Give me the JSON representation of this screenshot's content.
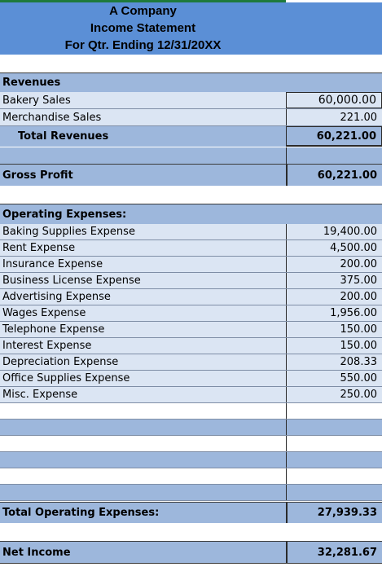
{
  "header": {
    "company": "A Company",
    "statement": "Income Statement",
    "period": "For Qtr. Ending 12/31/20XX"
  },
  "revenues": {
    "heading": "Revenues",
    "items": [
      {
        "label": "Bakery Sales",
        "value": "60,000.00"
      },
      {
        "label": "Merchandise Sales",
        "value": "221.00"
      }
    ],
    "total_label": "Total Revenues",
    "total_value": "60,221.00"
  },
  "gross_profit": {
    "label": "Gross Profit",
    "value": "60,221.00"
  },
  "operating_expenses": {
    "heading": "Operating Expenses:",
    "items": [
      {
        "label": "Baking Supplies Expense",
        "value": "19,400.00"
      },
      {
        "label": "Rent Expense",
        "value": "4,500.00"
      },
      {
        "label": "Insurance Expense",
        "value": "200.00"
      },
      {
        "label": "Business License Expense",
        "value": "375.00"
      },
      {
        "label": "Advertising Expense",
        "value": "200.00"
      },
      {
        "label": "Wages Expense",
        "value": "1,956.00"
      },
      {
        "label": "Telephone Expense",
        "value": "150.00"
      },
      {
        "label": "Interest Expense",
        "value": "150.00"
      },
      {
        "label": "Depreciation Expense",
        "value": "208.33"
      },
      {
        "label": "Office Supplies Expense",
        "value": "550.00"
      },
      {
        "label": "Misc. Expense",
        "value": "250.00"
      }
    ],
    "total_label": "Total Operating Expenses:",
    "total_value": "27,939.33"
  },
  "net_income": {
    "label": "Net Income",
    "value": "32,281.67"
  },
  "colors": {
    "header": "#5b8fd6",
    "light_row": "#dbe5f3",
    "mid_row": "#9db7dc",
    "top_accent": "#1e7a3c"
  }
}
